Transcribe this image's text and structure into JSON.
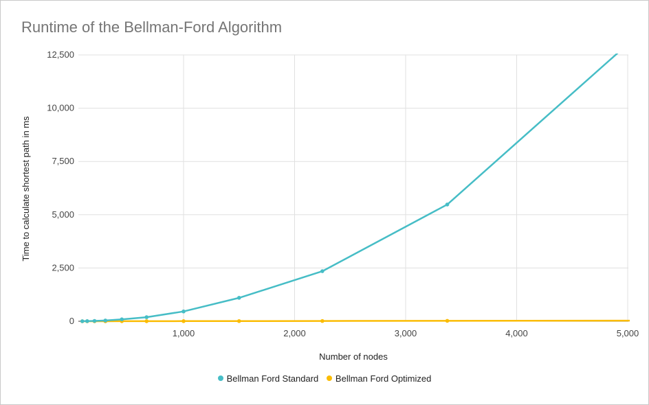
{
  "chart_data": {
    "type": "line",
    "title": "Runtime of the Bellman-Ford Algorithm",
    "xlabel": "Number of nodes",
    "ylabel": "Time to calculate shortest path in ms",
    "xlim": [
      50,
      5000
    ],
    "ylim": [
      0,
      12500
    ],
    "x_ticks": [
      "1,000",
      "2,000",
      "3,000",
      "4,000",
      "5,000"
    ],
    "y_ticks": [
      "0",
      "2,500",
      "5,000",
      "7,500",
      "10,000",
      "12,500"
    ],
    "grid": true,
    "legend_position": "bottom",
    "x": [
      88,
      132,
      198,
      296,
      444,
      667,
      1000,
      1500,
      2250,
      3375,
      5063
    ],
    "series": [
      {
        "name": "Bellman Ford Standard",
        "color": "#46bdc6",
        "values": [
          2,
          6,
          15,
          35,
          90,
          190,
          460,
          1100,
          2350,
          5480,
          13300
        ]
      },
      {
        "name": "Bellman Ford Optimized",
        "color": "#fbbc04",
        "values": [
          0,
          0,
          1,
          1,
          2,
          3,
          5,
          8,
          12,
          20,
          30
        ]
      }
    ]
  }
}
